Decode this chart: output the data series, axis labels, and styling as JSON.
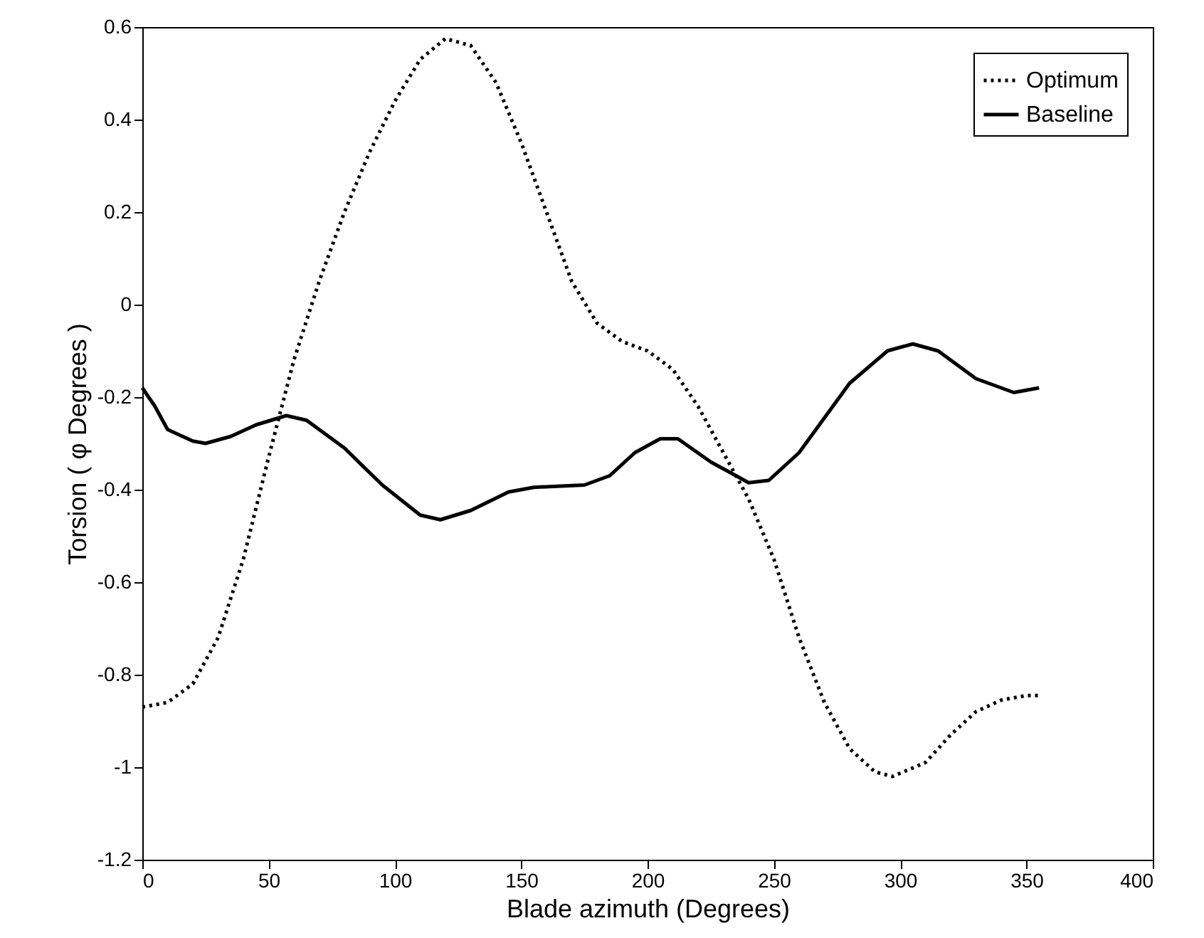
{
  "chart_data": {
    "type": "line",
    "xlabel": "Blade azimuth (Degrees)",
    "ylabel": "Torsion ( φ  Degrees )",
    "xlim": [
      0,
      400
    ],
    "ylim": [
      -1.2,
      0.6
    ],
    "xticks": [
      0,
      50,
      100,
      150,
      200,
      250,
      300,
      350,
      400
    ],
    "yticks": [
      -1.2,
      -1,
      -0.8,
      -0.6,
      -0.4,
      -0.2,
      0,
      0.2,
      0.4,
      0.6
    ],
    "grid": false,
    "legend": "top right",
    "series": [
      {
        "name": "Optimum",
        "color": "#000000",
        "line_style": "dotted",
        "x": [
          0,
          10,
          20,
          30,
          40,
          50,
          60,
          70,
          80,
          90,
          100,
          110,
          120,
          130,
          140,
          150,
          160,
          170,
          180,
          190,
          200,
          210,
          220,
          230,
          240,
          250,
          260,
          270,
          280,
          290,
          297,
          310,
          320,
          330,
          340,
          350,
          355
        ],
        "values": [
          -0.87,
          -0.86,
          -0.82,
          -0.72,
          -0.55,
          -0.33,
          -0.12,
          0.05,
          0.2,
          0.33,
          0.44,
          0.53,
          0.575,
          0.56,
          0.48,
          0.35,
          0.2,
          0.05,
          -0.04,
          -0.08,
          -0.1,
          -0.14,
          -0.22,
          -0.32,
          -0.42,
          -0.55,
          -0.72,
          -0.86,
          -0.96,
          -1.01,
          -1.02,
          -0.99,
          -0.93,
          -0.88,
          -0.855,
          -0.845,
          -0.845
        ]
      },
      {
        "name": "Baseline",
        "color": "#000000",
        "line_style": "solid",
        "x": [
          0,
          5,
          10,
          20,
          25,
          35,
          45,
          57,
          65,
          80,
          95,
          110,
          118,
          130,
          145,
          155,
          175,
          185,
          195,
          205,
          212,
          225,
          240,
          248,
          260,
          280,
          295,
          305,
          315,
          330,
          345,
          355
        ],
        "values": [
          -0.18,
          -0.22,
          -0.27,
          -0.295,
          -0.3,
          -0.285,
          -0.26,
          -0.24,
          -0.25,
          -0.31,
          -0.39,
          -0.455,
          -0.465,
          -0.445,
          -0.405,
          -0.395,
          -0.39,
          -0.37,
          -0.32,
          -0.29,
          -0.29,
          -0.34,
          -0.385,
          -0.38,
          -0.32,
          -0.17,
          -0.1,
          -0.085,
          -0.1,
          -0.16,
          -0.19,
          -0.18
        ]
      }
    ]
  }
}
